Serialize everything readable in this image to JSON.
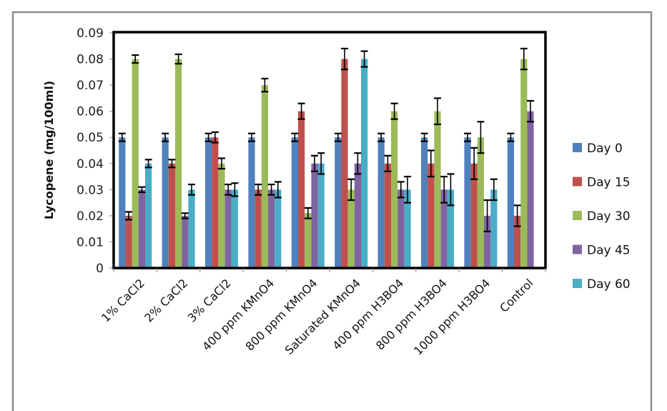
{
  "chart_data": {
    "type": "bar",
    "title": "",
    "xlabel": "",
    "ylabel": "Lycopene (mg/100ml)",
    "ylim": [
      0,
      0.09
    ],
    "yticks": [
      "0",
      "0.01",
      "0.02",
      "0.03",
      "0.04",
      "0.05",
      "0.06",
      "0.07",
      "0.08",
      "0.09"
    ],
    "ytick_values": [
      0,
      0.01,
      0.02,
      0.03,
      0.04,
      0.05,
      0.06,
      0.07,
      0.08,
      0.09
    ],
    "grid": false,
    "legend_position": "right",
    "categories": [
      "1% CaCl2",
      "2% CaCl2",
      "3% CaCl2",
      "400 ppm KMnO4",
      "800 ppm KMnO4",
      "Saturated KMnO4",
      "400 ppm H3BO4",
      "800 ppm H3BO4",
      "1000 ppm H3BO4",
      "Control"
    ],
    "series": [
      {
        "name": "Day 0",
        "color": "#4F81BD",
        "values": [
          0.05,
          0.05,
          0.05,
          0.05,
          0.05,
          0.05,
          0.05,
          0.05,
          0.05,
          0.05
        ],
        "errors": [
          0.0015,
          0.0015,
          0.0015,
          0.0015,
          0.0015,
          0.0015,
          0.0015,
          0.0015,
          0.0015,
          0.0015
        ]
      },
      {
        "name": "Day 15",
        "color": "#C0504D",
        "values": [
          0.02,
          0.04,
          0.05,
          0.03,
          0.06,
          0.08,
          0.04,
          0.04,
          0.04,
          0.02
        ],
        "errors": [
          0.0015,
          0.0015,
          0.002,
          0.002,
          0.003,
          0.004,
          0.003,
          0.005,
          0.006,
          0.004
        ]
      },
      {
        "name": "Day 30",
        "color": "#9BBB59",
        "values": [
          0.08,
          0.08,
          0.04,
          0.07,
          0.021,
          0.03,
          0.06,
          0.06,
          0.05,
          0.08
        ],
        "errors": [
          0.0015,
          0.0018,
          0.002,
          0.0025,
          0.002,
          0.004,
          0.003,
          0.005,
          0.006,
          0.004
        ]
      },
      {
        "name": "Day 45",
        "color": "#8064A2",
        "values": [
          0.03,
          0.02,
          0.03,
          0.03,
          0.04,
          0.04,
          0.03,
          0.03,
          0.02,
          0.06
        ],
        "errors": [
          0.001,
          0.001,
          0.002,
          0.002,
          0.003,
          0.004,
          0.003,
          0.005,
          0.006,
          0.004
        ]
      },
      {
        "name": "Day 60",
        "color": "#4BACC6",
        "values": [
          0.04,
          0.03,
          0.03,
          0.03,
          0.04,
          0.08,
          0.03,
          0.03,
          0.03,
          null
        ],
        "errors": [
          0.0015,
          0.002,
          0.0025,
          0.003,
          0.004,
          0.003,
          0.005,
          0.006,
          0.004,
          null
        ]
      }
    ]
  }
}
